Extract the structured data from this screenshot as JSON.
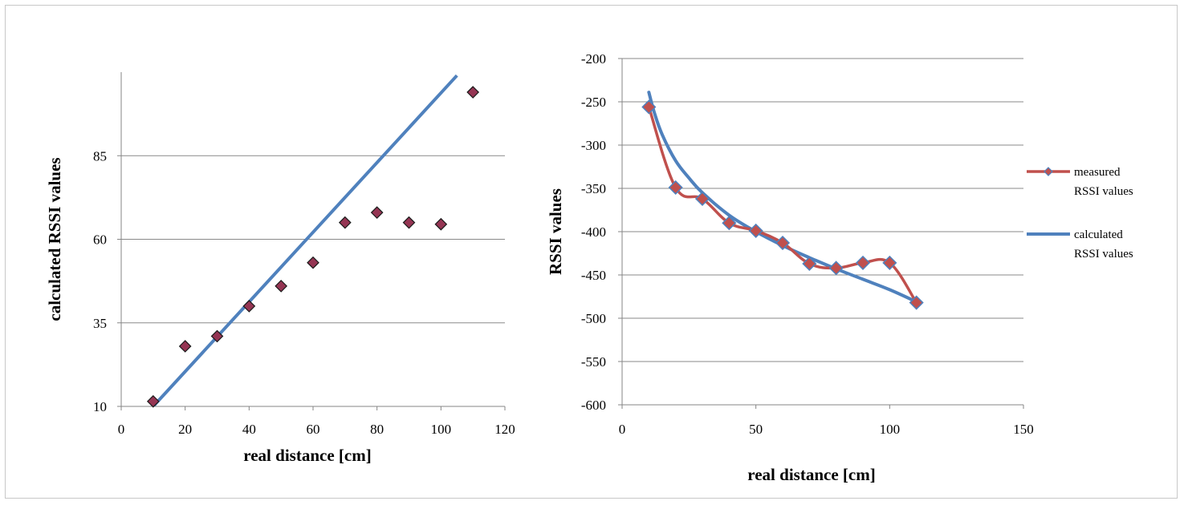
{
  "chart_data": [
    {
      "type": "scatter",
      "title": "",
      "xlabel": "real distance [cm]",
      "ylabel": "calculated RSSI values",
      "xlim": [
        0,
        120
      ],
      "ylim": [
        10,
        110
      ],
      "x_ticks": [
        0,
        20,
        40,
        60,
        80,
        100,
        120
      ],
      "y_ticks": [
        10,
        35,
        60,
        85
      ],
      "grid": "horizontal",
      "legend": "none",
      "series": [
        {
          "kind": "points",
          "marker": "diamond",
          "color": "#953553",
          "x": [
            10,
            20,
            30,
            40,
            50,
            60,
            70,
            80,
            90,
            100,
            110
          ],
          "y": [
            11.5,
            28,
            31,
            40,
            46,
            53,
            65,
            68,
            65,
            64.5,
            104
          ]
        },
        {
          "kind": "trendline",
          "color": "#4F81BD",
          "x": [
            10,
            105
          ],
          "y": [
            10,
            109
          ]
        }
      ]
    },
    {
      "type": "line",
      "title": "",
      "xlabel": "real distance [cm]",
      "ylabel": "RSSI values",
      "xlim": [
        0,
        150
      ],
      "ylim": [
        -600,
        -200
      ],
      "x_ticks": [
        0,
        50,
        100,
        150
      ],
      "y_ticks": [
        -200,
        -250,
        -300,
        -350,
        -400,
        -450,
        -500,
        -550,
        -600
      ],
      "grid": "horizontal",
      "legend": "right",
      "series": [
        {
          "name": "measured RSSI values",
          "legend_lines": [
            "measured",
            "RSSI values"
          ],
          "color": "#C0504D",
          "marker": "diamond",
          "marker_fill": "#C0504D",
          "marker_stroke": "#4F81BD",
          "x": [
            10,
            20,
            30,
            40,
            50,
            60,
            70,
            80,
            90,
            100,
            110
          ],
          "y": [
            -256,
            -349,
            -362,
            -390,
            -399,
            -413,
            -437,
            -442,
            -436,
            -436,
            -482
          ]
        },
        {
          "name": "calculated RSSI values",
          "legend_lines": [
            "calculated",
            "RSSI values"
          ],
          "color": "#4F81BD",
          "x": [
            10,
            12,
            15,
            20,
            25,
            30,
            40,
            50,
            60,
            70,
            80,
            90,
            100,
            110
          ],
          "y": [
            -239,
            -262,
            -288,
            -318,
            -338,
            -355,
            -381,
            -400,
            -416,
            -430,
            -443,
            -455,
            -467,
            -481
          ]
        }
      ]
    }
  ]
}
